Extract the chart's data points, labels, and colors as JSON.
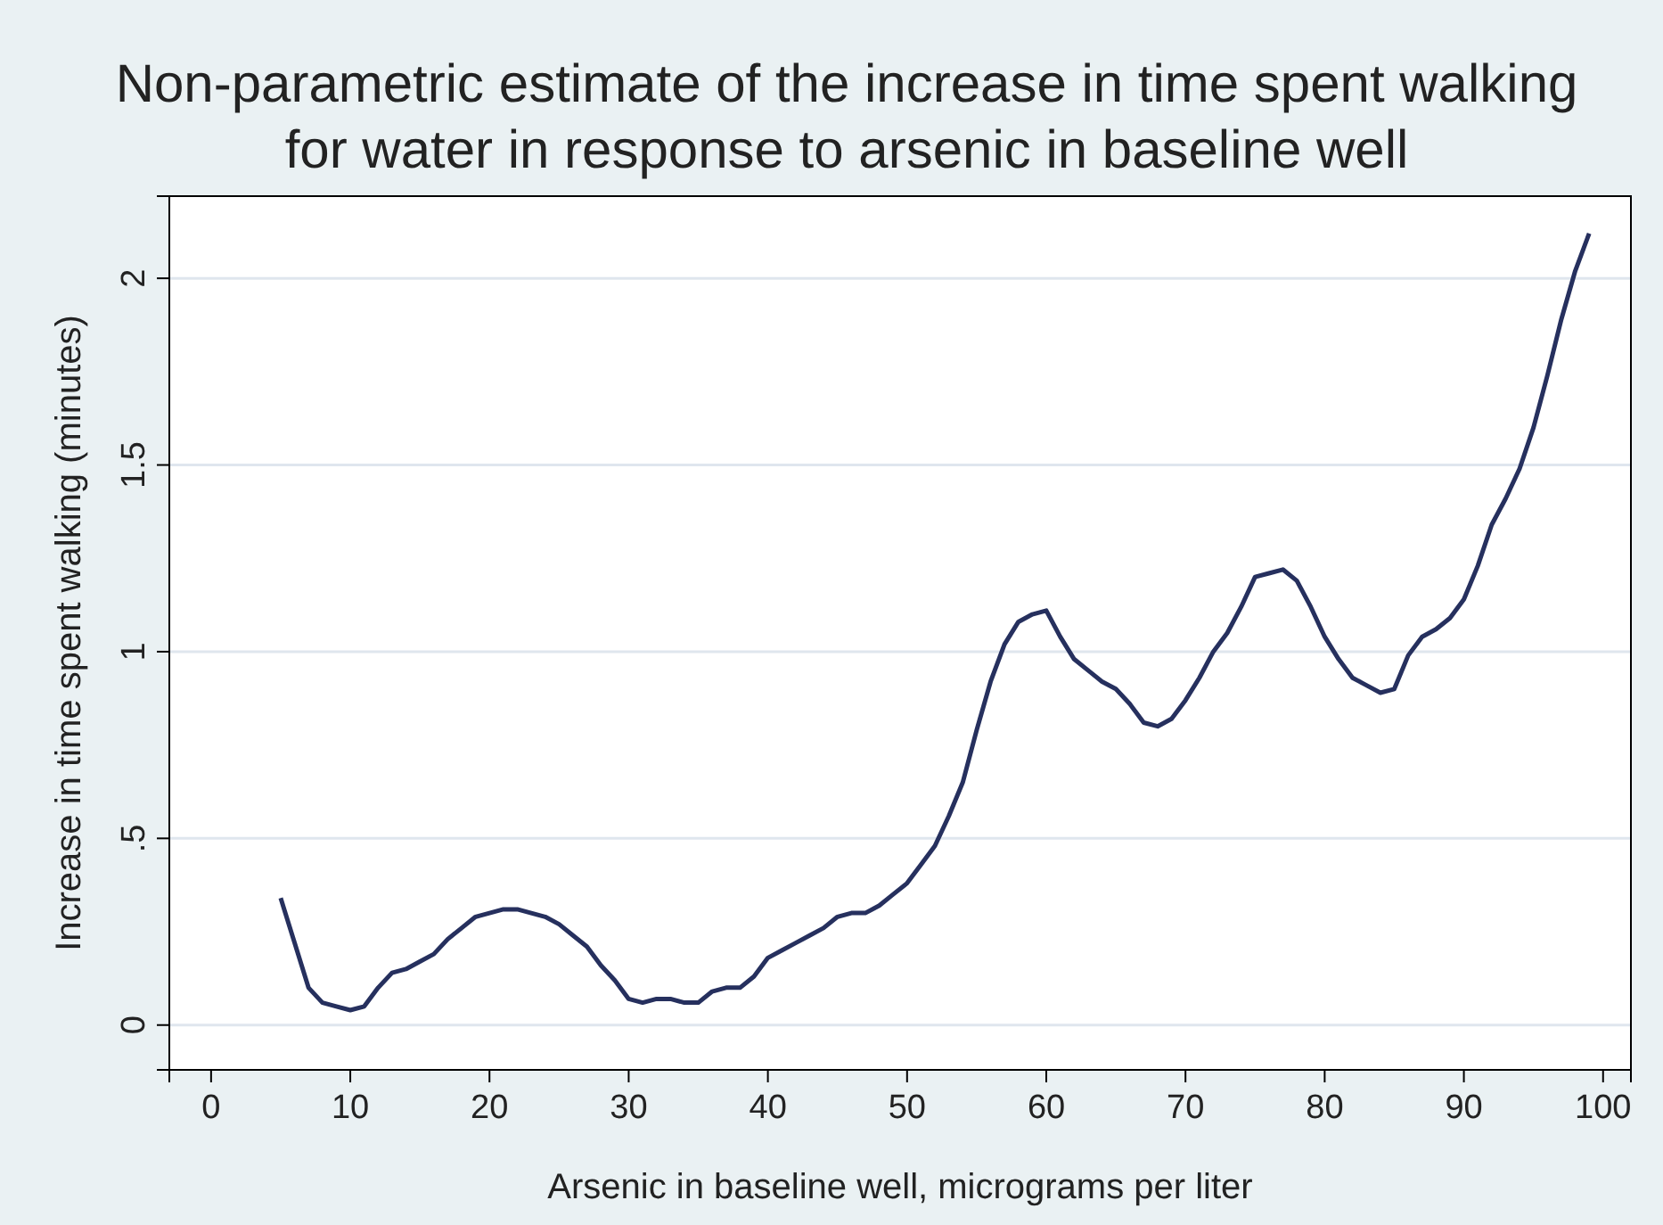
{
  "chart_data": {
    "type": "line",
    "title": "Non-parametric estimate of the increase in time spent walking\nfor water in response to arsenic in baseline well",
    "xlabel": "Arsenic in baseline well, micrograms per liter",
    "ylabel": "Increase in time spent walking (minutes)",
    "x": [
      5,
      6,
      7,
      8,
      9,
      10,
      11,
      12,
      13,
      14,
      15,
      16,
      17,
      18,
      19,
      20,
      21,
      22,
      23,
      24,
      25,
      26,
      27,
      28,
      29,
      30,
      31,
      32,
      33,
      34,
      35,
      36,
      37,
      38,
      39,
      40,
      41,
      42,
      43,
      44,
      45,
      46,
      47,
      48,
      49,
      50,
      51,
      52,
      53,
      54,
      55,
      56,
      57,
      58,
      59,
      60,
      61,
      62,
      63,
      64,
      65,
      66,
      67,
      68,
      69,
      70,
      71,
      72,
      73,
      74,
      75,
      76,
      77,
      78,
      79,
      80,
      81,
      82,
      83,
      84,
      85,
      86,
      87,
      88,
      89,
      90,
      91,
      92,
      93,
      94,
      95,
      96,
      97,
      98,
      99
    ],
    "series": [
      {
        "color": "#26305e",
        "values": [
          0.34,
          0.22,
          0.1,
          0.06,
          0.05,
          0.04,
          0.05,
          0.1,
          0.14,
          0.15,
          0.17,
          0.19,
          0.23,
          0.26,
          0.29,
          0.3,
          0.31,
          0.31,
          0.3,
          0.29,
          0.27,
          0.24,
          0.21,
          0.16,
          0.12,
          0.07,
          0.06,
          0.07,
          0.07,
          0.06,
          0.06,
          0.09,
          0.1,
          0.1,
          0.13,
          0.18,
          0.2,
          0.22,
          0.24,
          0.26,
          0.29,
          0.3,
          0.3,
          0.32,
          0.35,
          0.38,
          0.43,
          0.48,
          0.56,
          0.65,
          0.79,
          0.92,
          1.02,
          1.08,
          1.1,
          1.11,
          1.04,
          0.98,
          0.95,
          0.92,
          0.9,
          0.86,
          0.81,
          0.8,
          0.82,
          0.87,
          0.93,
          1.0,
          1.05,
          1.12,
          1.2,
          1.21,
          1.22,
          1.19,
          1.12,
          1.04,
          0.98,
          0.93,
          0.91,
          0.89,
          0.9,
          0.99,
          1.04,
          1.06,
          1.09,
          1.14,
          1.23,
          1.34,
          1.41,
          1.49,
          1.6,
          1.74,
          1.89,
          2.02,
          2.12
        ]
      }
    ],
    "xlim": [
      -3,
      102
    ],
    "ylim": [
      -0.12,
      2.22
    ],
    "xticks": [
      0,
      10,
      20,
      30,
      40,
      50,
      60,
      70,
      80,
      90,
      100
    ],
    "yticks": [
      0,
      {
        "value": 0.5,
        "label": ".5"
      },
      1,
      1.5,
      2
    ],
    "grid": "y",
    "marker": "none",
    "line_style": "solid"
  }
}
